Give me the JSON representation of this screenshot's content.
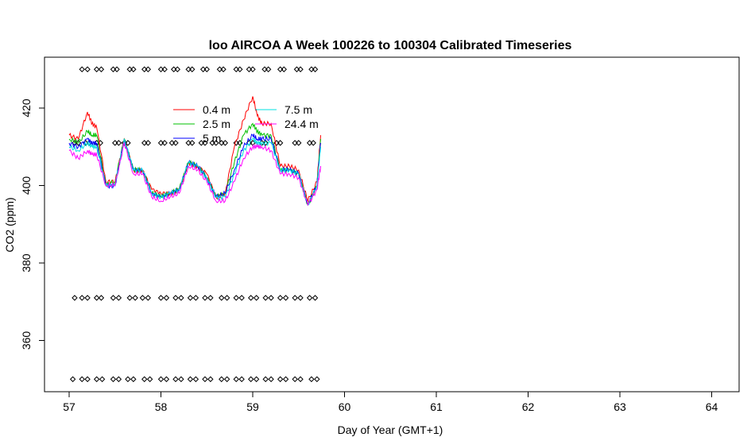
{
  "chart_data": {
    "type": "line",
    "title": "loo AIRCOA A  Week 100226 to 100304  Calibrated Timeseries",
    "xlabel": "Day of Year (GMT+1)",
    "ylabel": "CO2 (ppm)",
    "xlim": [
      56.7,
      64.3
    ],
    "ylim": [
      346,
      432
    ],
    "x_ticks": [
      57,
      58,
      59,
      60,
      61,
      62,
      63,
      64
    ],
    "y_ticks": [
      360,
      380,
      400,
      420
    ],
    "grid": false,
    "legend": {
      "position": "top-left",
      "columns": 2
    },
    "series": [
      {
        "name": "0.4 m",
        "color": "#ff0000",
        "x": [
          57.0,
          57.1,
          57.2,
          57.25,
          57.3,
          57.4,
          57.5,
          57.6,
          57.7,
          57.8,
          57.9,
          58.0,
          58.1,
          58.2,
          58.3,
          58.4,
          58.5,
          58.6,
          58.7,
          58.8,
          58.9,
          59.0,
          59.05,
          59.1,
          59.2,
          59.3,
          59.4,
          59.5,
          59.6,
          59.7,
          59.74
        ],
        "y": [
          413,
          412,
          419,
          416,
          415,
          401,
          401,
          412,
          404,
          404,
          399,
          398,
          398,
          399,
          406,
          405,
          403,
          397,
          398,
          410,
          417,
          423,
          418,
          416,
          416,
          405,
          405,
          404,
          396,
          401,
          413
        ]
      },
      {
        "name": "2.5 m",
        "color": "#00c000",
        "x": [
          57.0,
          57.1,
          57.2,
          57.25,
          57.3,
          57.4,
          57.5,
          57.6,
          57.7,
          57.8,
          57.9,
          58.0,
          58.1,
          58.2,
          58.3,
          58.4,
          58.5,
          58.6,
          58.7,
          58.8,
          58.9,
          59.0,
          59.05,
          59.1,
          59.2,
          59.3,
          59.4,
          59.5,
          59.6,
          59.7,
          59.74
        ],
        "y": [
          412,
          411,
          414,
          413,
          413,
          400,
          401,
          412,
          404,
          404,
          398,
          397,
          398,
          399,
          406,
          405,
          402,
          397,
          398,
          406,
          413,
          416,
          414,
          413,
          413,
          404,
          404,
          403,
          395,
          400,
          412
        ]
      },
      {
        "name": "5 m",
        "color": "#0000ff",
        "x": [
          57.0,
          57.1,
          57.2,
          57.25,
          57.3,
          57.4,
          57.5,
          57.6,
          57.7,
          57.8,
          57.9,
          58.0,
          58.1,
          58.2,
          58.3,
          58.4,
          58.5,
          58.6,
          58.7,
          58.8,
          58.9,
          59.0,
          59.05,
          59.1,
          59.2,
          59.3,
          59.4,
          59.5,
          59.6,
          59.7,
          59.74
        ],
        "y": [
          411,
          410,
          412,
          411,
          411,
          400,
          400,
          412,
          404,
          404,
          398,
          397,
          398,
          399,
          406,
          405,
          402,
          397,
          398,
          404,
          410,
          413,
          412,
          412,
          412,
          404,
          404,
          403,
          395,
          400,
          411
        ]
      },
      {
        "name": "7.5 m",
        "color": "#00e0e0",
        "x": [
          57.0,
          57.1,
          57.2,
          57.25,
          57.3,
          57.4,
          57.5,
          57.6,
          57.7,
          57.8,
          57.9,
          58.0,
          58.1,
          58.2,
          58.3,
          58.4,
          58.5,
          58.6,
          58.7,
          58.8,
          58.9,
          59.0,
          59.05,
          59.1,
          59.2,
          59.3,
          59.4,
          59.5,
          59.6,
          59.7,
          59.74
        ],
        "y": [
          410,
          409,
          411,
          410,
          410,
          400,
          400,
          412,
          404,
          404,
          398,
          397,
          398,
          399,
          406,
          405,
          402,
          397,
          397,
          403,
          409,
          412,
          411,
          411,
          411,
          404,
          404,
          403,
          395,
          400,
          410
        ]
      },
      {
        "name": "24.4 m",
        "color": "#ff00ff",
        "x": [
          57.0,
          57.1,
          57.2,
          57.25,
          57.3,
          57.4,
          57.5,
          57.6,
          57.7,
          57.8,
          57.9,
          58.0,
          58.1,
          58.2,
          58.3,
          58.4,
          58.5,
          58.6,
          58.7,
          58.8,
          58.9,
          59.0,
          59.05,
          59.1,
          59.2,
          59.3,
          59.4,
          59.5,
          59.6,
          59.7,
          59.74
        ],
        "y": [
          409,
          407,
          409,
          408,
          408,
          400,
          400,
          411,
          403,
          403,
          397,
          396,
          397,
          398,
          405,
          404,
          401,
          396,
          396,
          401,
          407,
          410,
          410,
          410,
          409,
          403,
          403,
          402,
          395,
          399,
          405
        ]
      }
    ],
    "flag_rows": [
      {
        "name": "flags-430",
        "y": 430,
        "x": [
          57.14,
          57.2,
          57.3,
          57.35,
          57.48,
          57.52,
          57.66,
          57.7,
          57.82,
          57.86,
          58.0,
          58.04,
          58.14,
          58.18,
          58.3,
          58.34,
          58.46,
          58.5,
          58.64,
          58.68,
          58.82,
          58.86,
          58.96,
          59.0,
          59.13,
          59.17,
          59.3,
          59.34,
          59.48,
          59.52,
          59.64,
          59.68
        ]
      },
      {
        "name": "flags-411",
        "y": 411,
        "x": [
          57.06,
          57.1,
          57.18,
          57.22,
          57.3,
          57.34,
          57.5,
          57.54,
          57.6,
          57.64,
          57.82,
          57.86,
          58.0,
          58.04,
          58.12,
          58.16,
          58.3,
          58.34,
          58.44,
          58.48,
          58.56,
          58.6,
          58.66,
          58.7,
          58.82,
          58.86,
          58.96,
          59.0,
          59.1,
          59.14,
          59.26,
          59.3,
          59.46,
          59.5,
          59.62,
          59.66
        ]
      },
      {
        "name": "flags-371",
        "y": 371,
        "x": [
          57.06,
          57.14,
          57.2,
          57.3,
          57.35,
          57.48,
          57.54,
          57.66,
          57.72,
          57.8,
          57.86,
          58.0,
          58.06,
          58.16,
          58.22,
          58.32,
          58.38,
          58.48,
          58.54,
          58.66,
          58.72,
          58.82,
          58.88,
          58.98,
          59.04,
          59.14,
          59.2,
          59.3,
          59.36,
          59.46,
          59.52,
          59.62,
          59.68
        ]
      },
      {
        "name": "flags-350",
        "y": 350,
        "x": [
          57.04,
          57.14,
          57.2,
          57.3,
          57.36,
          57.48,
          57.54,
          57.64,
          57.7,
          57.82,
          57.88,
          58.0,
          58.06,
          58.16,
          58.22,
          58.32,
          58.38,
          58.48,
          58.54,
          58.66,
          58.72,
          58.82,
          58.88,
          58.98,
          59.04,
          59.14,
          59.2,
          59.3,
          59.36,
          59.46,
          59.52,
          59.64,
          59.7
        ]
      }
    ]
  }
}
